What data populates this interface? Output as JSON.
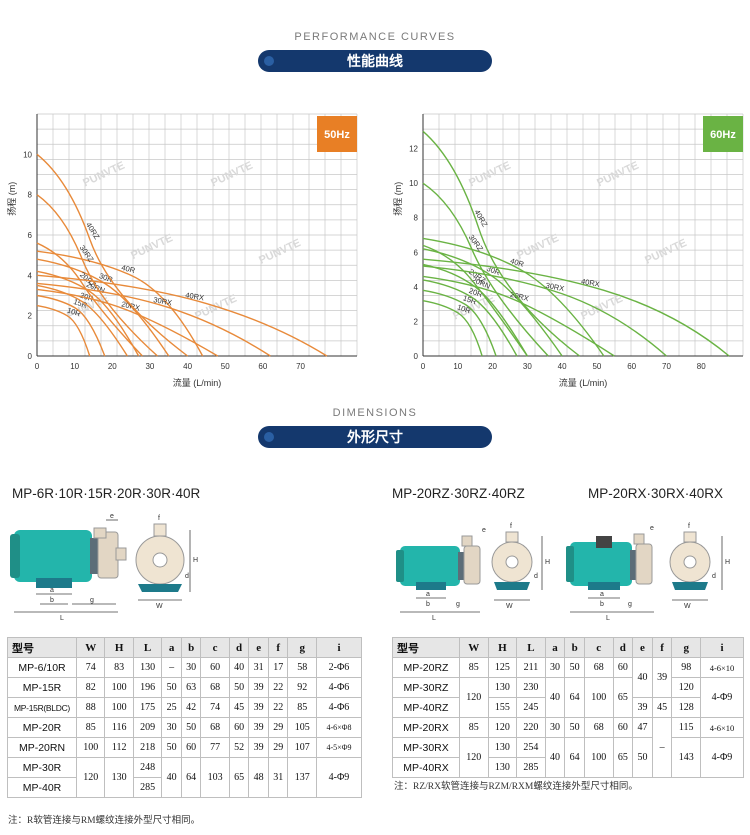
{
  "performance": {
    "title_en": "PERFORMANCE CURVES",
    "title_cn": "性能曲线"
  },
  "dimensions": {
    "title_en": "DIMENSIONS",
    "title_cn": "外形尺寸"
  },
  "watermark": "PUNVTE",
  "chart_data": [
    {
      "type": "line",
      "badge": "50Hz",
      "badge_color": "#e87f25",
      "line_color": "#e88a3a",
      "xlabel": "流量 (L/min)",
      "ylabel": "扬程 (m)",
      "xlim": [
        0,
        85
      ],
      "ylim": [
        0,
        12
      ],
      "xticks": [
        0,
        10,
        20,
        30,
        40,
        50,
        60,
        70
      ],
      "yticks": [
        0,
        2,
        4,
        6,
        8,
        10
      ],
      "series": [
        {
          "name": "10R",
          "x": [
            0,
            8,
            14
          ],
          "y": [
            2.5,
            2.0,
            0
          ]
        },
        {
          "name": "15R",
          "x": [
            0,
            10,
            18
          ],
          "y": [
            3.0,
            2.4,
            0
          ]
        },
        {
          "name": "20R",
          "x": [
            0,
            12,
            24
          ],
          "y": [
            3.5,
            2.7,
            0
          ]
        },
        {
          "name": "20RN",
          "x": [
            0,
            14,
            27
          ],
          "y": [
            4.2,
            3.2,
            0
          ]
        },
        {
          "name": "30R",
          "x": [
            0,
            18,
            35
          ],
          "y": [
            4.8,
            3.6,
            0
          ]
        },
        {
          "name": "40R",
          "x": [
            0,
            25,
            44
          ],
          "y": [
            5.2,
            4.0,
            0
          ]
        },
        {
          "name": "20RZ",
          "x": [
            0,
            12,
            28
          ],
          "y": [
            5.6,
            3.6,
            0
          ]
        },
        {
          "name": "20RX",
          "x": [
            0,
            25,
            48
          ],
          "y": [
            3.3,
            2.2,
            0
          ]
        },
        {
          "name": "30RZ",
          "x": [
            0,
            12,
            32
          ],
          "y": [
            8.0,
            4.8,
            0
          ]
        },
        {
          "name": "30RX",
          "x": [
            0,
            35,
            62
          ],
          "y": [
            3.6,
            2.4,
            0
          ]
        },
        {
          "name": "40RZ",
          "x": [
            0,
            14,
            40
          ],
          "y": [
            10.0,
            5.8,
            0
          ]
        },
        {
          "name": "40RX",
          "x": [
            0,
            45,
            77
          ],
          "y": [
            4.0,
            2.6,
            0
          ]
        }
      ]
    },
    {
      "type": "line",
      "badge": "60Hz",
      "badge_color": "#6ab344",
      "line_color": "#6ab344",
      "xlabel": "流量 (L/min)",
      "ylabel": "扬程 (m)",
      "xlim": [
        0,
        92
      ],
      "ylim": [
        0,
        14
      ],
      "xticks": [
        0,
        10,
        20,
        30,
        40,
        50,
        60,
        70,
        80
      ],
      "yticks": [
        0,
        2,
        4,
        6,
        8,
        10,
        12
      ],
      "series": [
        {
          "name": "10R",
          "x": [
            0,
            10,
            17
          ],
          "y": [
            3.2,
            2.5,
            0
          ]
        },
        {
          "name": "15R",
          "x": [
            0,
            12,
            21
          ],
          "y": [
            3.8,
            3.0,
            0
          ]
        },
        {
          "name": "20R",
          "x": [
            0,
            14,
            27
          ],
          "y": [
            4.4,
            3.4,
            0
          ]
        },
        {
          "name": "20RN",
          "x": [
            0,
            15,
            30
          ],
          "y": [
            5.3,
            4.0,
            0
          ]
        },
        {
          "name": "30R",
          "x": [
            0,
            20,
            40
          ],
          "y": [
            6.2,
            4.6,
            0
          ]
        },
        {
          "name": "40R",
          "x": [
            0,
            28,
            52
          ],
          "y": [
            6.8,
            5.0,
            0
          ]
        },
        {
          "name": "20RZ",
          "x": [
            0,
            14,
            30
          ],
          "y": [
            6.4,
            4.4,
            0
          ]
        },
        {
          "name": "20RX",
          "x": [
            0,
            28,
            55
          ],
          "y": [
            4.6,
            3.1,
            0
          ]
        },
        {
          "name": "30RZ",
          "x": [
            0,
            14,
            36
          ],
          "y": [
            10.0,
            6.2,
            0
          ]
        },
        {
          "name": "30RX",
          "x": [
            0,
            40,
            70
          ],
          "y": [
            5.2,
            3.6,
            0
          ]
        },
        {
          "name": "40RZ",
          "x": [
            0,
            16,
            45
          ],
          "y": [
            13.0,
            7.4,
            0
          ]
        },
        {
          "name": "40RX",
          "x": [
            0,
            52,
            88
          ],
          "y": [
            5.6,
            3.8,
            0
          ]
        }
      ]
    }
  ],
  "left_section": {
    "title": "MP-6R·10R·15R·20R·30R·40R",
    "headers": [
      "型号",
      "W",
      "H",
      "L",
      "a",
      "b",
      "c",
      "d",
      "e",
      "f",
      "g",
      "i"
    ],
    "rows": [
      [
        "MP-6/10R",
        "74",
        "83",
        "130",
        "–",
        "30",
        "60",
        "40",
        "31",
        "17",
        "58",
        "2-Φ6"
      ],
      [
        "MP-15R",
        "82",
        "100",
        "196",
        "50",
        "63",
        "68",
        "50",
        "39",
        "22",
        "92",
        "4-Φ6"
      ],
      [
        "MP-15R(BLDC)",
        "88",
        "100",
        "175",
        "25",
        "42",
        "74",
        "45",
        "39",
        "22",
        "85",
        "4-Φ6"
      ],
      [
        "MP-20R",
        "85",
        "116",
        "209",
        "30",
        "50",
        "68",
        "60",
        "39",
        "29",
        "105",
        "4-6×Φ8"
      ],
      [
        "MP-20RN",
        "100",
        "112",
        "218",
        "50",
        "60",
        "77",
        "52",
        "39",
        "29",
        "107",
        "4-5×Φ9"
      ]
    ],
    "merged": {
      "m1": "MP-30R",
      "m2": "MP-40R",
      "W": "120",
      "H": "130",
      "L1": "248",
      "L2": "285",
      "a": "40",
      "b": "64",
      "c": "103",
      "d": "65",
      "e": "48",
      "f": "31",
      "g": "137",
      "i": "4-Φ9"
    },
    "note": "注：R软管连接与RM螺纹连接外型尺寸相同。"
  },
  "right_section": {
    "title_rz": "MP-20RZ·30RZ·40RZ",
    "title_rx": "MP-20RX·30RX·40RX",
    "headers": [
      "型号",
      "W",
      "H",
      "L",
      "a",
      "b",
      "c",
      "d",
      "e",
      "f",
      "g",
      "i"
    ],
    "models": [
      "MP-20RZ",
      "MP-30RZ",
      "MP-40RZ",
      "MP-20RX",
      "MP-30RX",
      "MP-40RX"
    ],
    "cells": {
      "w1": "85",
      "h1": "125",
      "l1": "211",
      "a1": "30",
      "b1": "50",
      "c1": "68",
      "d1": "60",
      "ef_rz": "40",
      "f_rz": "39",
      "g1": "98",
      "i1": "4-6×10",
      "w23": "120",
      "h2": "130",
      "l2": "230",
      "h3": "155",
      "l3": "245",
      "a23": "40",
      "b23": "64",
      "c23": "100",
      "d23": "65",
      "e3": "39",
      "f3": "45",
      "g2": "120",
      "g3": "128",
      "i23": "4-Φ9",
      "w4": "85",
      "h4": "120",
      "l4": "220",
      "a4": "30",
      "b4": "50",
      "c4": "68",
      "d4": "60",
      "e4": "47",
      "f_rx": "–",
      "g4": "115",
      "i4": "4-6×10",
      "w56": "120",
      "h5": "130",
      "l5": "254",
      "h6": "130",
      "l6": "285",
      "a56": "40",
      "b56": "64",
      "c56": "100",
      "d56": "65",
      "e56": "50",
      "g56": "143",
      "i56": "4-Φ9"
    },
    "note": "注：RZ/RX软管连接与RZM/RXM螺纹连接外型尺寸相同。"
  }
}
